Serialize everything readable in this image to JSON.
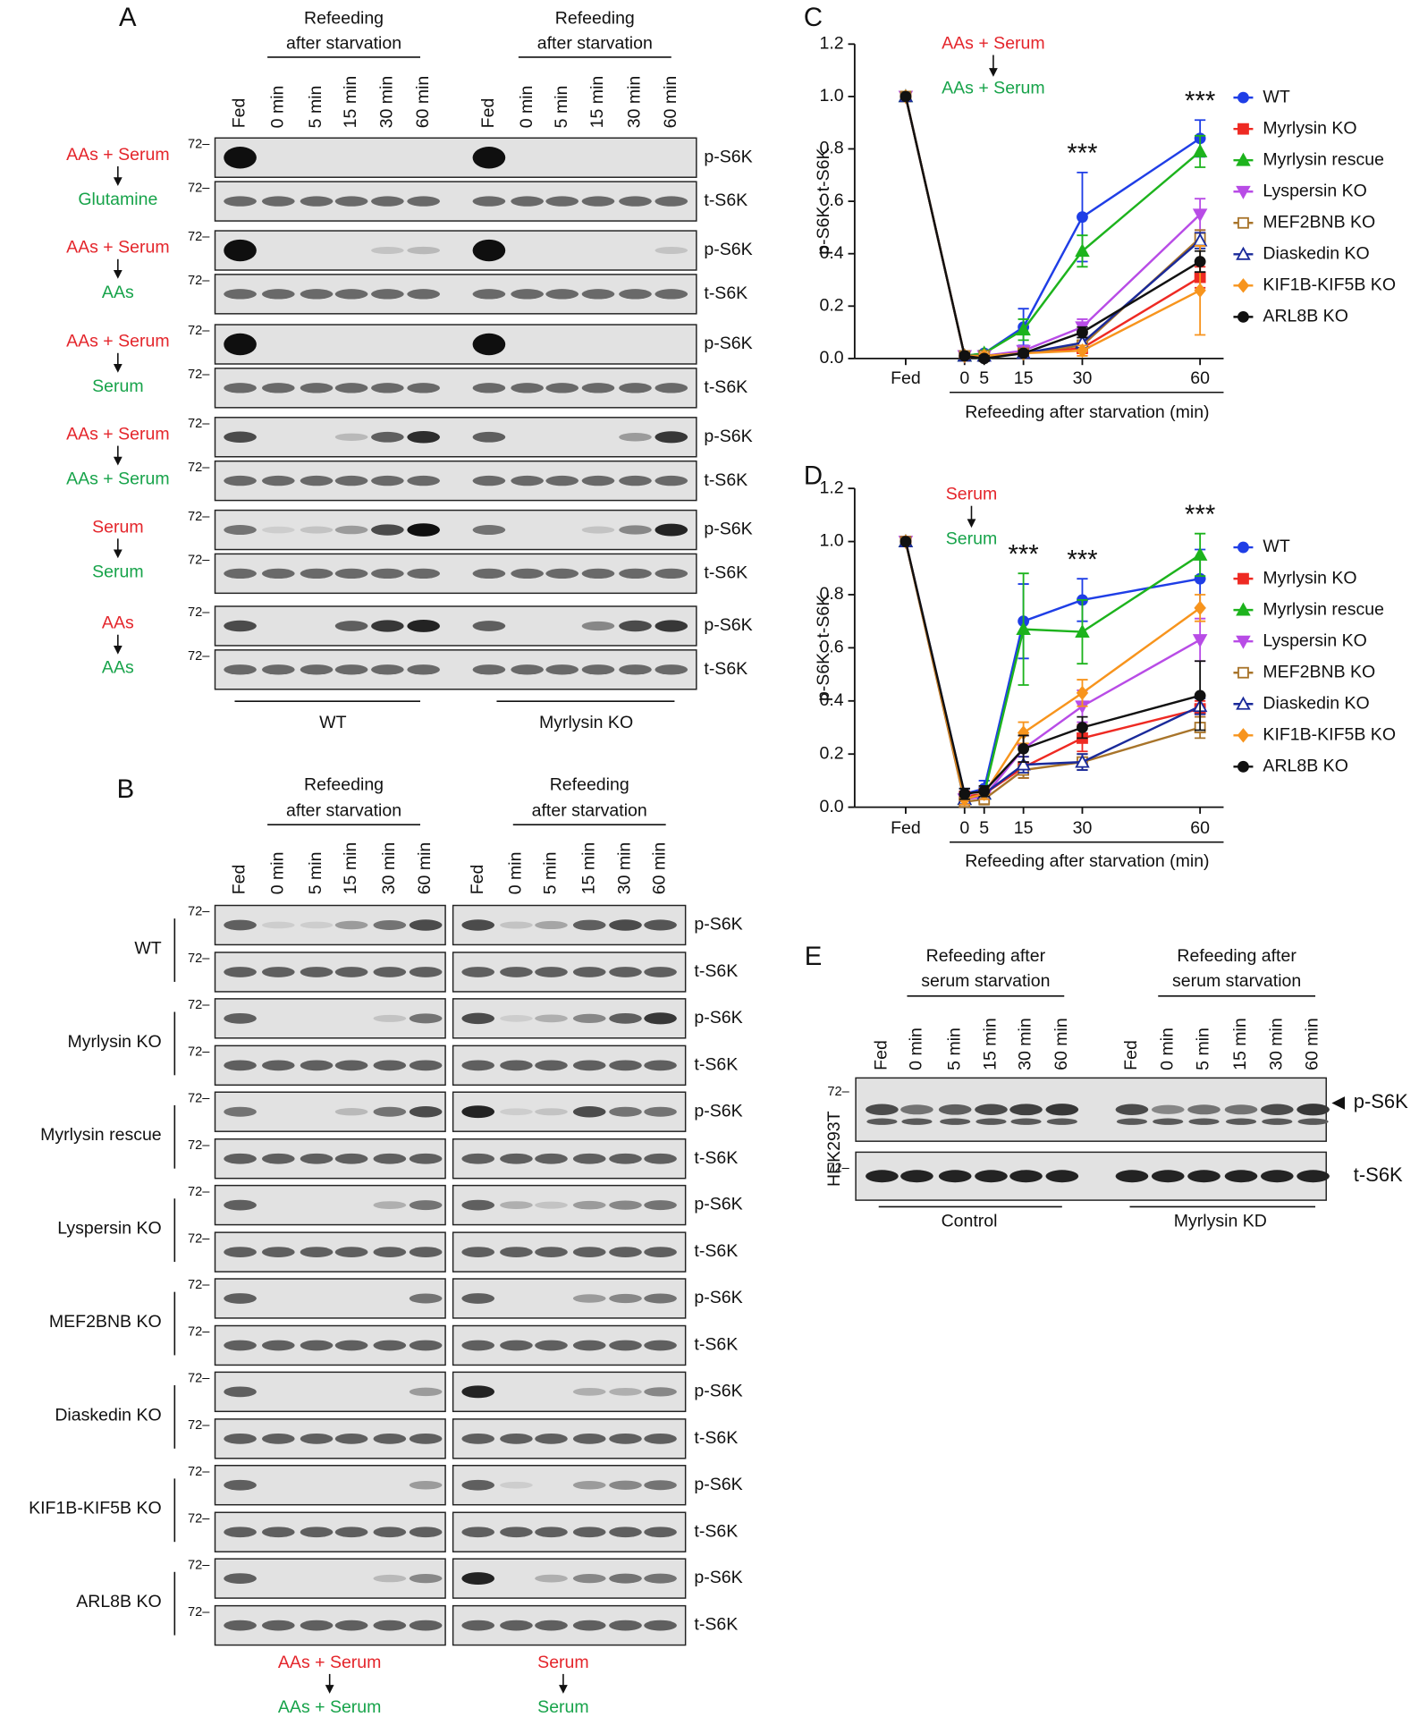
{
  "panel_a": {
    "label": "A",
    "header": [
      "Refeeding",
      "after starvation"
    ],
    "lanes": [
      "Fed",
      "0 min",
      "5 min",
      "15 min",
      "30 min",
      "60 min"
    ],
    "marker": "72–",
    "blots": [
      "p-S6K",
      "t-S6K"
    ],
    "conditions": [
      {
        "from": "AAs + Serum",
        "to": "Glutamine"
      },
      {
        "from": "AAs + Serum",
        "to": "AAs"
      },
      {
        "from": "AAs + Serum",
        "to": "Serum"
      },
      {
        "from": "AAs + Serum",
        "to": "AAs + Serum"
      },
      {
        "from": "Serum",
        "to": "Serum"
      },
      {
        "from": "AAs",
        "to": "AAs"
      }
    ],
    "groups": [
      "WT",
      "Myrlysin KO"
    ]
  },
  "panel_b": {
    "label": "B",
    "header": [
      "Refeeding",
      "after starvation"
    ],
    "lanes": [
      "Fed",
      "0 min",
      "5 min",
      "15 min",
      "30 min",
      "60 min"
    ],
    "marker": "72–",
    "blots": [
      "p-S6K",
      "t-S6K"
    ],
    "genotypes": [
      "WT",
      "Myrlysin KO",
      "Myrlysin rescue",
      "Lyspersin KO",
      "MEF2BNB KO",
      "Diaskedin KO",
      "KIF1B-KIF5B KO",
      "ARL8B KO"
    ],
    "conditions": [
      {
        "from": "AAs + Serum",
        "to": "AAs + Serum"
      },
      {
        "from": "Serum",
        "to": "Serum"
      }
    ]
  },
  "panel_e": {
    "label": "E",
    "header": [
      "Refeeding after",
      "serum starvation"
    ],
    "lanes": [
      "Fed",
      "0 min",
      "5 min",
      "15 min",
      "30 min",
      "60 min"
    ],
    "cell_line": "HEK293T",
    "marker": "72–",
    "blots": [
      "p-S6K",
      "t-S6K"
    ],
    "groups": [
      "Control",
      "Myrlysin KD"
    ]
  },
  "chart_data": [
    {
      "type": "line",
      "label": "C",
      "ylabel": "p-S6K : t-S6K",
      "xlabel": "Refeeding after starvation (min)",
      "treatment": {
        "from": "AAs + Serum",
        "to": "AAs + Serum"
      },
      "x": [
        -15,
        0,
        5,
        15,
        30,
        60
      ],
      "xlim": [
        -28,
        66
      ],
      "xticks": [
        {
          "value": -15,
          "label": "Fed"
        },
        0,
        5,
        15,
        30,
        60
      ],
      "ylim": [
        0,
        1.2
      ],
      "yticks": [
        {
          "value": 0,
          "label": "0.0"
        },
        0.2,
        0.4,
        0.6,
        0.8,
        {
          "value": 1,
          "label": "1.0"
        },
        1.2
      ],
      "legend": "right",
      "annotations": [
        {
          "text": "***",
          "x": 30
        },
        {
          "text": "***",
          "x": 60
        }
      ],
      "series": [
        {
          "name": "WT",
          "color": "#1f3ee6",
          "marker": "circle",
          "values": [
            1.0,
            0.01,
            0.02,
            0.12,
            0.54,
            0.84
          ],
          "errors": [
            0,
            0.01,
            0.01,
            0.07,
            0.17,
            0.07
          ]
        },
        {
          "name": "Myrlysin KO",
          "color": "#ee2a23",
          "marker": "square",
          "values": [
            1.0,
            0.01,
            0.01,
            0.02,
            0.04,
            0.31
          ],
          "errors": [
            0,
            0.01,
            0.01,
            0.01,
            0.02,
            0.04
          ]
        },
        {
          "name": "Myrlysin rescue",
          "color": "#1db31d",
          "marker": "triangle",
          "values": [
            1.0,
            0.01,
            0.02,
            0.11,
            0.41,
            0.79
          ],
          "errors": [
            0,
            0.01,
            0.01,
            0.04,
            0.06,
            0.06
          ]
        },
        {
          "name": "Lyspersin KO",
          "color": "#b84ce6",
          "marker": "triangle-down",
          "values": [
            1.0,
            0.01,
            0.01,
            0.03,
            0.12,
            0.55
          ],
          "errors": [
            0,
            0.01,
            0.01,
            0.01,
            0.03,
            0.06
          ]
        },
        {
          "name": "MEF2BNB KO",
          "color": "#a8742a",
          "marker": "square-open",
          "values": [
            1.0,
            0.01,
            0.01,
            0.02,
            0.05,
            0.46
          ],
          "errors": [
            0,
            0.01,
            0.01,
            0.01,
            0.02,
            0.03
          ]
        },
        {
          "name": "Diaskedin KO",
          "color": "#1a2a9a",
          "marker": "triangle-open",
          "values": [
            1.0,
            0.01,
            0.01,
            0.02,
            0.06,
            0.45
          ],
          "errors": [
            0,
            0.01,
            0.01,
            0.01,
            0.02,
            0.03
          ]
        },
        {
          "name": "KIF1B-KIF5B KO",
          "color": "#f7941d",
          "marker": "diamond",
          "values": [
            1.0,
            0.01,
            0.01,
            0.02,
            0.03,
            0.26
          ],
          "errors": [
            0,
            0.01,
            0.01,
            0.01,
            0.02,
            0.17
          ]
        },
        {
          "name": "ARL8B KO",
          "color": "#111111",
          "marker": "circle",
          "values": [
            1.0,
            0.01,
            0.0,
            0.02,
            0.1,
            0.37
          ],
          "errors": [
            0,
            0.01,
            0.01,
            0.01,
            0.02,
            0.04
          ]
        }
      ]
    },
    {
      "type": "line",
      "label": "D",
      "ylabel": "p-S6K : t-S6K",
      "xlabel": "Refeeding after starvation (min)",
      "treatment": {
        "from": "Serum",
        "to": "Serum"
      },
      "x": [
        -15,
        0,
        5,
        15,
        30,
        60
      ],
      "xlim": [
        -28,
        66
      ],
      "xticks": [
        {
          "value": -15,
          "label": "Fed"
        },
        0,
        5,
        15,
        30,
        60
      ],
      "ylim": [
        0,
        1.2
      ],
      "yticks": [
        {
          "value": 0,
          "label": "0.0"
        },
        0.2,
        0.4,
        0.6,
        0.8,
        {
          "value": 1,
          "label": "1.0"
        },
        1.2
      ],
      "legend": "right",
      "annotations": [
        {
          "text": "***",
          "x": 15
        },
        {
          "text": "***",
          "x": 30
        },
        {
          "text": "***",
          "x": 60
        }
      ],
      "series": [
        {
          "name": "WT",
          "color": "#1f3ee6",
          "marker": "circle",
          "values": [
            1.0,
            0.05,
            0.07,
            0.7,
            0.78,
            0.86
          ],
          "errors": [
            0,
            0.02,
            0.03,
            0.14,
            0.08,
            0.11
          ]
        },
        {
          "name": "Myrlysin KO",
          "color": "#ee2a23",
          "marker": "square",
          "values": [
            1.0,
            0.04,
            0.05,
            0.15,
            0.26,
            0.37
          ],
          "errors": [
            0,
            0.02,
            0.02,
            0.04,
            0.05,
            0.03
          ]
        },
        {
          "name": "Myrlysin rescue",
          "color": "#1db31d",
          "marker": "triangle",
          "values": [
            1.0,
            0.03,
            0.05,
            0.67,
            0.66,
            0.95
          ],
          "errors": [
            0,
            0.02,
            0.02,
            0.21,
            0.12,
            0.08
          ]
        },
        {
          "name": "Lyspersin KO",
          "color": "#b84ce6",
          "marker": "triangle-down",
          "values": [
            1.0,
            0.03,
            0.04,
            0.22,
            0.38,
            0.63
          ],
          "errors": [
            0,
            0.02,
            0.02,
            0.05,
            0.06,
            0.08
          ]
        },
        {
          "name": "MEF2BNB KO",
          "color": "#a8742a",
          "marker": "square-open",
          "values": [
            1.0,
            0.02,
            0.03,
            0.14,
            0.17,
            0.3
          ],
          "errors": [
            0,
            0.01,
            0.02,
            0.03,
            0.03,
            0.04
          ]
        },
        {
          "name": "Diaskedin KO",
          "color": "#1a2a9a",
          "marker": "triangle-open",
          "values": [
            1.0,
            0.03,
            0.05,
            0.16,
            0.17,
            0.38
          ],
          "errors": [
            0,
            0.02,
            0.02,
            0.03,
            0.03,
            0.03
          ]
        },
        {
          "name": "KIF1B-KIF5B KO",
          "color": "#f7941d",
          "marker": "diamond",
          "values": [
            1.0,
            0.03,
            0.05,
            0.28,
            0.43,
            0.75
          ],
          "errors": [
            0,
            0.02,
            0.02,
            0.04,
            0.05,
            0.05
          ]
        },
        {
          "name": "ARL8B KO",
          "color": "#111111",
          "marker": "circle",
          "values": [
            1.0,
            0.05,
            0.06,
            0.22,
            0.3,
            0.42
          ],
          "errors": [
            0,
            0.02,
            0.02,
            0.05,
            0.04,
            0.13
          ]
        }
      ]
    }
  ]
}
